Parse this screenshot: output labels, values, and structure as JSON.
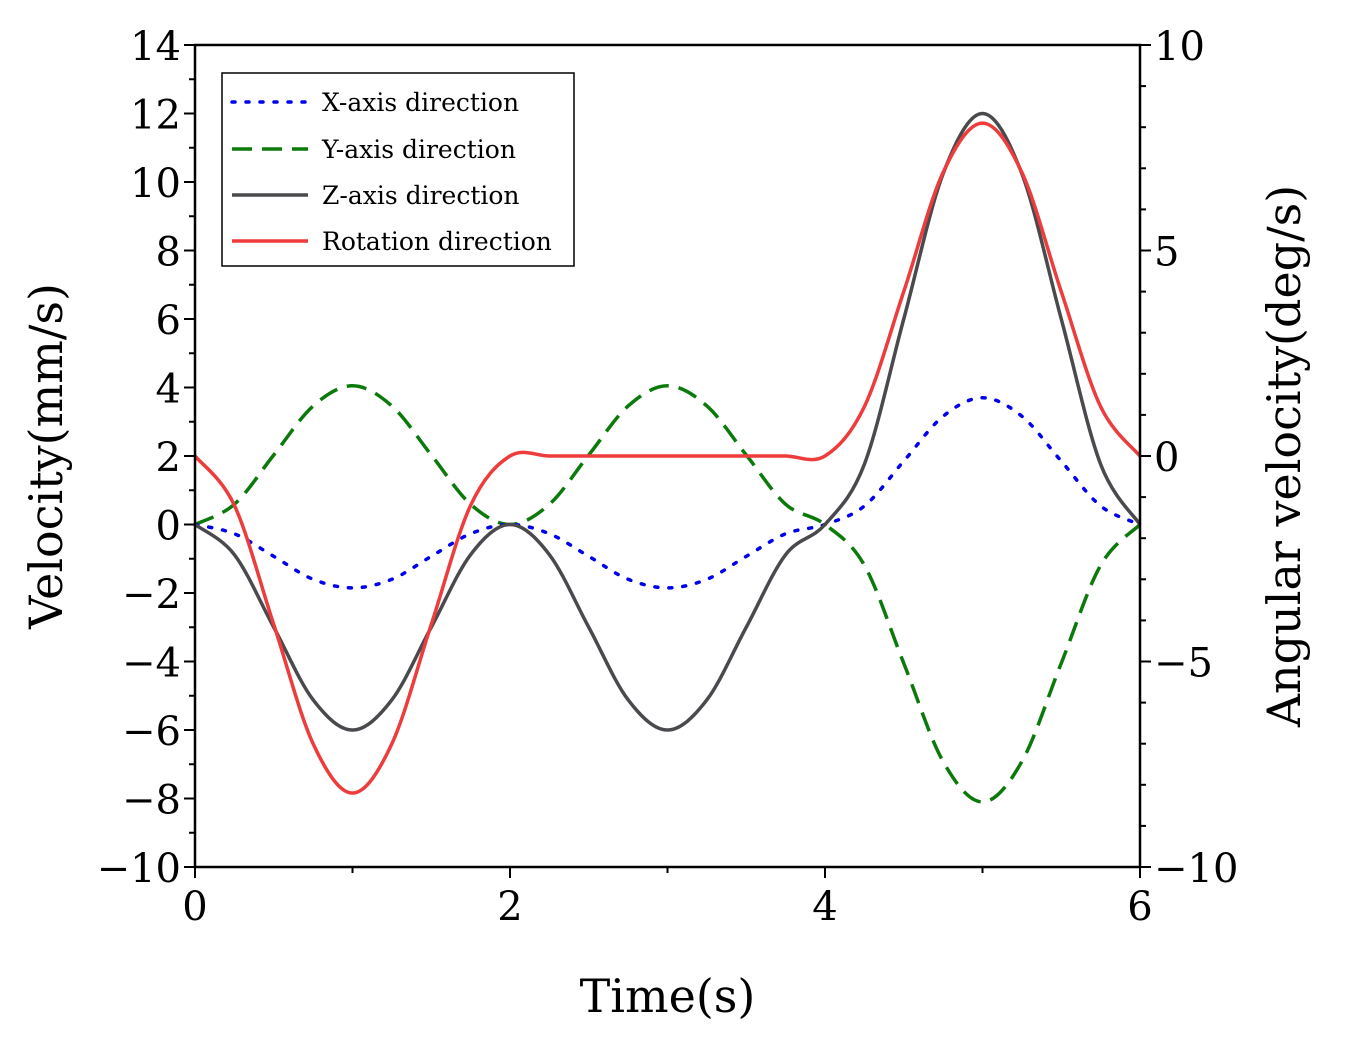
{
  "chart_data": {
    "type": "line",
    "title": "",
    "xlabel": "Time(s)",
    "ylabel": "Velocity(mm/s)",
    "y2label": "Angular velocity(deg/s)",
    "xlim": [
      0,
      6
    ],
    "ylim": [
      -10,
      14
    ],
    "y2lim": [
      -10,
      10
    ],
    "xticks": [
      0,
      2,
      4,
      6
    ],
    "xtick_labels": [
      "0",
      "2",
      "4",
      "6"
    ],
    "yticks": [
      -10,
      -8,
      -6,
      -4,
      -2,
      0,
      2,
      4,
      6,
      8,
      10,
      12,
      14
    ],
    "ytick_labels": [
      "−10",
      "−8",
      "−6",
      "−4",
      "−2",
      "0",
      "2",
      "4",
      "6",
      "8",
      "10",
      "12",
      "14"
    ],
    "y2ticks": [
      -10,
      -5,
      0,
      5,
      10
    ],
    "y2tick_labels": [
      "−10",
      "−5",
      "0",
      "5",
      "10"
    ],
    "grid": false,
    "legend_position": "top-left",
    "series": [
      {
        "name": "X-axis direction",
        "axis": "left",
        "color": "#0000ee",
        "style": "dotted",
        "x": [
          0,
          0.25,
          0.5,
          0.75,
          1.0,
          1.25,
          1.5,
          1.75,
          2.0,
          2.25,
          2.5,
          2.75,
          3.0,
          3.25,
          3.5,
          3.75,
          4.0,
          4.25,
          4.5,
          4.75,
          5.0,
          5.25,
          5.5,
          5.75,
          6.0
        ],
        "values": [
          0,
          -0.27,
          -0.93,
          -1.6,
          -1.85,
          -1.6,
          -0.93,
          -0.27,
          0,
          -0.27,
          -0.93,
          -1.6,
          -1.85,
          -1.6,
          -0.93,
          -0.27,
          0,
          0.54,
          1.85,
          3.16,
          3.7,
          3.16,
          1.85,
          0.54,
          0
        ]
      },
      {
        "name": "Y-axis direction",
        "axis": "left",
        "color": "#0b7a0b",
        "style": "dashed",
        "x": [
          0,
          0.25,
          0.5,
          0.75,
          1.0,
          1.25,
          1.5,
          1.75,
          2.0,
          2.25,
          2.5,
          2.75,
          3.0,
          3.25,
          3.5,
          3.75,
          4.0,
          4.25,
          4.5,
          4.75,
          5.0,
          5.25,
          5.5,
          5.75,
          6.0
        ],
        "values": [
          0,
          0.59,
          2.03,
          3.46,
          4.05,
          3.46,
          2.03,
          0.59,
          0,
          0.59,
          2.03,
          3.46,
          4.05,
          3.46,
          2.03,
          0.59,
          0,
          -1.19,
          -4.05,
          -6.92,
          -8.1,
          -6.92,
          -4.05,
          -1.19,
          0
        ]
      },
      {
        "name": "Z-axis direction",
        "axis": "left",
        "color": "#4a4a4e",
        "style": "solid",
        "x": [
          0,
          0.25,
          0.5,
          0.75,
          1.0,
          1.25,
          1.5,
          1.75,
          2.0,
          2.25,
          2.5,
          2.75,
          3.0,
          3.25,
          3.5,
          3.75,
          4.0,
          4.25,
          4.5,
          4.75,
          5.0,
          5.25,
          5.5,
          5.75,
          6.0
        ],
        "values": [
          0,
          -0.88,
          -3.0,
          -5.12,
          -6.0,
          -5.12,
          -3.0,
          -0.88,
          0,
          -0.88,
          -3.0,
          -5.12,
          -6.0,
          -5.12,
          -3.0,
          -0.88,
          0,
          1.76,
          6.0,
          10.24,
          12.0,
          10.24,
          6.0,
          1.76,
          0
        ]
      },
      {
        "name": "Rotation direction",
        "axis": "right",
        "color": "#ee3b3b",
        "style": "solid",
        "x": [
          0,
          0.25,
          0.5,
          0.75,
          1.0,
          1.25,
          1.5,
          1.75,
          2.0,
          2.25,
          2.5,
          2.75,
          3.0,
          3.25,
          3.5,
          3.75,
          4.0,
          4.25,
          4.5,
          4.75,
          5.0,
          5.25,
          5.5,
          5.75,
          6.0
        ],
        "values": [
          0,
          -1.2,
          -4.1,
          -7.0,
          -8.2,
          -7.0,
          -4.1,
          -1.2,
          0,
          0,
          0,
          0,
          0,
          0,
          0,
          0,
          0,
          1.2,
          4.0,
          6.9,
          8.1,
          6.9,
          4.0,
          1.2,
          0
        ]
      }
    ]
  }
}
